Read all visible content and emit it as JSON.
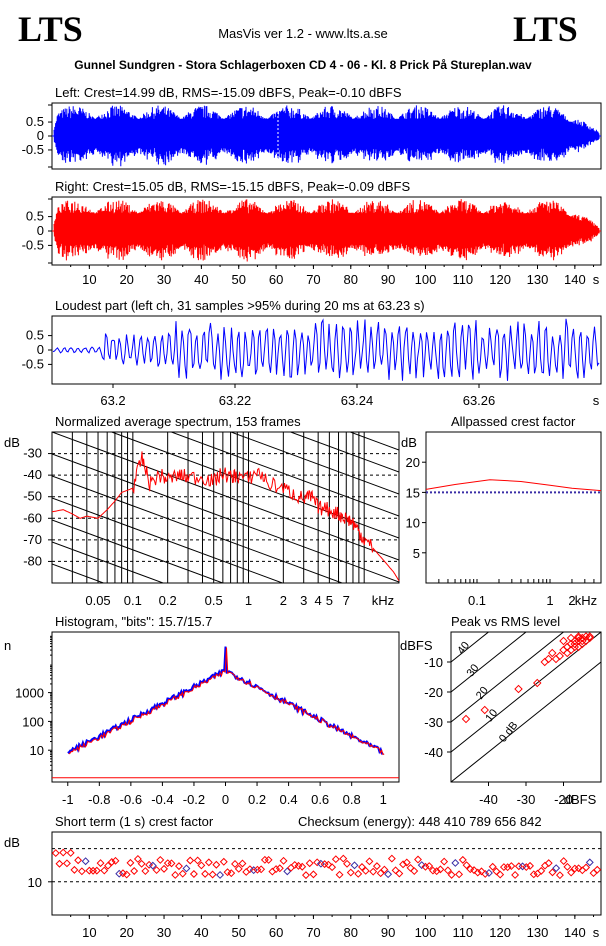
{
  "header": {
    "logo_left": "LTS",
    "logo_right": "LTS",
    "app": "MasVis ver 1.2 - www.lts.a.se",
    "file": "Gunnel Sundgren - Stora Schlagerboxen CD 4 - 06 - Kl. 8 Prick På Stureplan.wav"
  },
  "chart_data": [
    {
      "id": "left",
      "type": "area",
      "title": "Left: Crest=14.99 dB, RMS=-15.09 dBFS, Peak=-0.10 dBFS",
      "yticks": [
        "0.5",
        "0",
        "-0.5"
      ],
      "ylim": [
        -1,
        1
      ],
      "xlim": [
        0,
        147
      ],
      "color": "#0000ff"
    },
    {
      "id": "right",
      "type": "area",
      "title": "Right: Crest=15.05 dB, RMS=-15.15 dBFS, Peak=-0.09 dBFS",
      "yticks": [
        "0.5",
        "0",
        "-0.5"
      ],
      "xticks": [
        "10",
        "20",
        "30",
        "40",
        "50",
        "60",
        "70",
        "80",
        "90",
        "100",
        "110",
        "120",
        "130",
        "140"
      ],
      "xunit": "s",
      "ylim": [
        -1,
        1
      ],
      "xlim": [
        0,
        147
      ],
      "color": "#ff0000"
    },
    {
      "id": "loudest",
      "type": "line",
      "title": "Loudest part (left  ch, 31 samples >95% during 20 ms at 63.23 s)",
      "yticks": [
        "0.5",
        "0",
        "-0.5"
      ],
      "xticks": [
        "63.2",
        "63.22",
        "63.24",
        "63.26"
      ],
      "xunit": "s",
      "xlim": [
        63.19,
        63.28
      ],
      "ylim": [
        -1,
        1
      ],
      "color": "#0000ff"
    },
    {
      "id": "spectrum",
      "type": "line",
      "title": "Normalized average spectrum, 153 frames",
      "ylabel": "dB",
      "yticks": [
        "-30",
        "-40",
        "-50",
        "-60",
        "-70",
        "-80"
      ],
      "xticks": [
        "0.05",
        "0.1",
        "0.2",
        "0.5",
        "1",
        "2",
        "3",
        "4",
        "5",
        "7"
      ],
      "xunit": "kHz",
      "xlim": [
        0.02,
        20
      ],
      "ylim": [
        -90,
        -20
      ],
      "points": [
        [
          0.02,
          -57
        ],
        [
          0.025,
          -56
        ],
        [
          0.03,
          -58
        ],
        [
          0.035,
          -60
        ],
        [
          0.04,
          -59
        ],
        [
          0.05,
          -60
        ],
        [
          0.06,
          -56
        ],
        [
          0.07,
          -52
        ],
        [
          0.08,
          -48
        ],
        [
          0.09,
          -47
        ],
        [
          0.1,
          -46
        ],
        [
          0.12,
          -32
        ],
        [
          0.14,
          -44
        ],
        [
          0.17,
          -40
        ],
        [
          0.2,
          -42
        ],
        [
          0.25,
          -40
        ],
        [
          0.3,
          -41
        ],
        [
          0.4,
          -41
        ],
        [
          0.5,
          -43
        ],
        [
          0.6,
          -39
        ],
        [
          0.7,
          -41
        ],
        [
          0.8,
          -40
        ],
        [
          1,
          -42
        ],
        [
          1.2,
          -38
        ],
        [
          1.5,
          -44
        ],
        [
          2,
          -46
        ],
        [
          2.5,
          -49
        ],
        [
          3,
          -51
        ],
        [
          3.5,
          -50
        ],
        [
          4,
          -55
        ],
        [
          5,
          -56
        ],
        [
          6,
          -58
        ],
        [
          7,
          -60
        ],
        [
          8,
          -62
        ],
        [
          9,
          -66
        ],
        [
          10,
          -70
        ],
        [
          12,
          -74
        ],
        [
          15,
          -80
        ],
        [
          18,
          -85
        ],
        [
          20,
          -89
        ]
      ],
      "color": "#ff0000"
    },
    {
      "id": "allpassed",
      "type": "line",
      "title": "Allpassed crest factor",
      "ylabel": "dB",
      "yticks": [
        "20",
        "15",
        "10",
        "5"
      ],
      "xticks": [
        "0.1",
        "1",
        "2"
      ],
      "xunit": "kHz",
      "xlim": [
        0.02,
        5
      ],
      "ylim": [
        0,
        25
      ],
      "series": [
        {
          "points": [
            [
              0.02,
              15.5
            ],
            [
              0.05,
              16.3
            ],
            [
              0.15,
              17.1
            ],
            [
              0.4,
              16.8
            ],
            [
              1,
              16.2
            ],
            [
              2,
              15.7
            ],
            [
              5,
              15.3
            ]
          ],
          "color": "#ff0000"
        },
        {
          "points": [
            [
              0.02,
              15
            ],
            [
              5,
              15
            ]
          ],
          "color": "#3a2ea6",
          "dashed": true
        }
      ]
    },
    {
      "id": "histogram",
      "type": "line",
      "title": "Histogram, \"bits\": 15.7/15.7",
      "ylabel": "n",
      "yticks": [
        "1000",
        "100",
        "10"
      ],
      "xticks": [
        "-1",
        "-0.8",
        "-0.6",
        "-0.4",
        "-0.2",
        "0",
        "0.2",
        "0.4",
        "0.6",
        "0.8",
        "1"
      ],
      "xlim": [
        -1.1,
        1.1
      ],
      "ylim": [
        1,
        100000
      ],
      "peak": 40000,
      "color": "#ff0000"
    },
    {
      "id": "peakrms",
      "type": "scatter",
      "title": "Peak vs RMS level",
      "ylabel": "dBFS",
      "yticks": [
        "-10",
        "-20",
        "-30",
        "-40"
      ],
      "xticks": [
        "-40",
        "-30",
        "-20"
      ],
      "xunit": "dBFS",
      "diag_labels": [
        "40",
        "30",
        "20",
        "10",
        "0 dB"
      ],
      "xlim": [
        -50,
        -10
      ],
      "ylim": [
        -50,
        0
      ],
      "points": [
        [
          -19,
          -5
        ],
        [
          -18,
          -4
        ],
        [
          -17,
          -3
        ],
        [
          -16,
          -3
        ],
        [
          -15,
          -2
        ],
        [
          -17,
          -4
        ],
        [
          -18,
          -6
        ],
        [
          -19,
          -7
        ],
        [
          -16,
          -5
        ],
        [
          -14,
          -3
        ],
        [
          -15,
          -4
        ],
        [
          -20,
          -6
        ],
        [
          -21,
          -8
        ],
        [
          -22,
          -9
        ],
        [
          -23,
          -7
        ],
        [
          -20,
          -3
        ],
        [
          -18,
          -2
        ],
        [
          -16,
          -1.5
        ],
        [
          -14,
          -1.5
        ],
        [
          -13,
          -2
        ],
        [
          -15,
          -3
        ],
        [
          -17,
          -5
        ],
        [
          -19,
          -5
        ],
        [
          -24,
          -9
        ],
        [
          -25,
          -10
        ],
        [
          -27,
          -17
        ],
        [
          -32,
          -19
        ],
        [
          -41,
          -26
        ],
        [
          -46,
          -29
        ],
        [
          -16,
          -2
        ],
        [
          -13,
          -1.5
        ]
      ],
      "color": "#ff0000"
    },
    {
      "id": "crest1s",
      "type": "scatter",
      "title": "Short term (1 s) crest factor",
      "checksum": "Checksum (energy):   448 410 789 656 842",
      "ylabel": "dB",
      "yticks": [
        "10"
      ],
      "xticks": [
        "10",
        "20",
        "30",
        "40",
        "50",
        "60",
        "70",
        "80",
        "90",
        "100",
        "110",
        "120",
        "130",
        "140"
      ],
      "xunit": "s",
      "xlim": [
        0,
        147
      ],
      "ylim": [
        0,
        25
      ],
      "dashed_levels": [
        10,
        20
      ],
      "color": "#ff0000"
    }
  ]
}
